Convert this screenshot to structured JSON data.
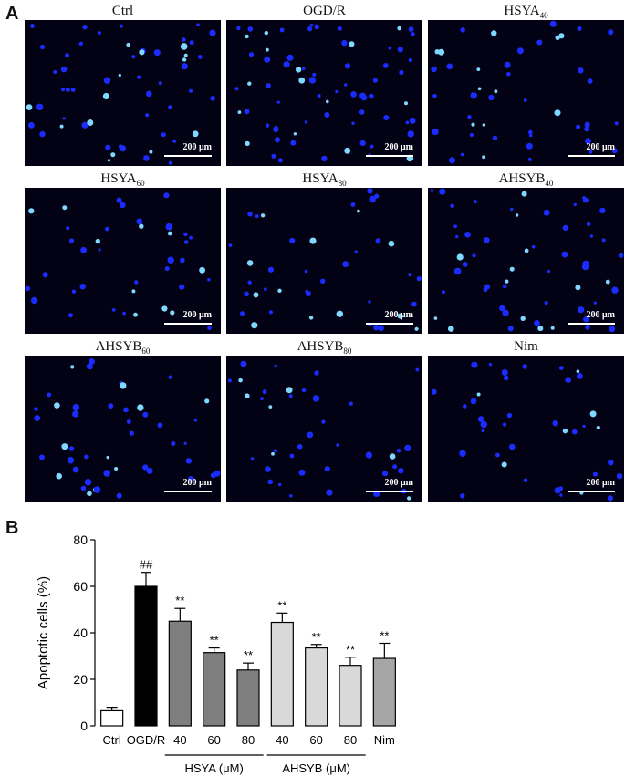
{
  "panel_a": {
    "letter": "A",
    "images": [
      {
        "name": "Ctrl",
        "sub": ""
      },
      {
        "name": "OGD/R",
        "sub": ""
      },
      {
        "name": "HSYA",
        "sub": "40"
      },
      {
        "name": "HSYA",
        "sub": "60"
      },
      {
        "name": "HSYA",
        "sub": "80"
      },
      {
        "name": "AHSYB",
        "sub": "40"
      },
      {
        "name": "AHSYB",
        "sub": "60"
      },
      {
        "name": "AHSYB",
        "sub": "80"
      },
      {
        "name": "Nim",
        "sub": ""
      }
    ],
    "scale_label": "200 μm",
    "colors": {
      "background": "#020214",
      "nucleus": "#1a2cff",
      "bright_nucleus": "#7fd8ff"
    }
  },
  "panel_b": {
    "letter": "B"
  },
  "chart_data": {
    "type": "bar",
    "categories": [
      "Ctrl",
      "OGD/R",
      "40",
      "60",
      "80",
      "40",
      "60",
      "80",
      "Nim"
    ],
    "values": [
      6.5,
      60,
      45,
      31.5,
      24,
      44.5,
      33.5,
      26,
      29
    ],
    "errors": [
      1.5,
      6,
      5.5,
      2,
      3,
      4,
      1.5,
      3.5,
      6.5
    ],
    "significance": [
      "",
      "##",
      "**",
      "**",
      "**",
      "**",
      "**",
      "**",
      "**"
    ],
    "bar_colors": [
      "#ffffff",
      "#000000",
      "#7f7f7f",
      "#7f7f7f",
      "#7f7f7f",
      "#d9d9d9",
      "#d9d9d9",
      "#d9d9d9",
      "#a6a6a6"
    ],
    "groups": [
      {
        "label": "HSYA (μM)",
        "start": 2,
        "end": 4
      },
      {
        "label": "AHSYB (μM)",
        "start": 5,
        "end": 7
      }
    ],
    "ylabel": "Apoptotic cells (%)",
    "xlabel": "",
    "ylim": [
      0,
      80
    ],
    "yticks": [
      0,
      20,
      40,
      60,
      80
    ]
  }
}
